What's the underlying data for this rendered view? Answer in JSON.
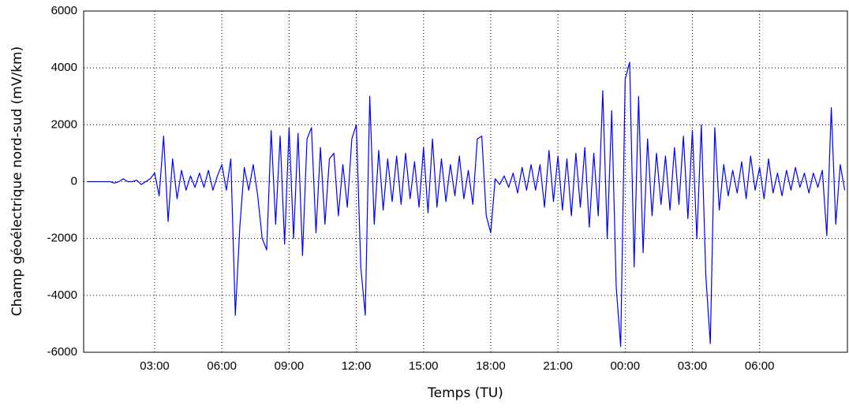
{
  "chart_data": {
    "type": "line",
    "xlabel": "Temps (TU)",
    "ylabel": "Champ géoélectrique nord-sud (mV/km)",
    "xlim": [
      -0.17,
      33.92
    ],
    "xticks": [
      {
        "value": 3,
        "label": "03:00"
      },
      {
        "value": 6,
        "label": "06:00"
      },
      {
        "value": 9,
        "label": "09:00"
      },
      {
        "value": 12,
        "label": "12:00"
      },
      {
        "value": 15,
        "label": "15:00"
      },
      {
        "value": 18,
        "label": "18:00"
      },
      {
        "value": 21,
        "label": "21:00"
      },
      {
        "value": 24,
        "label": "00:00"
      },
      {
        "value": 27,
        "label": "03:00"
      },
      {
        "value": 30,
        "label": "06:00"
      }
    ],
    "ylim": [
      -6000,
      6000
    ],
    "yticks": [
      -6000,
      -4000,
      -2000,
      0,
      2000,
      4000,
      6000
    ],
    "grid": true,
    "x": [
      0,
      0.2,
      0.4,
      0.6,
      0.8,
      1,
      1.2,
      1.4,
      1.6,
      1.8,
      2,
      2.2,
      2.4,
      2.6,
      2.8,
      3,
      3.2,
      3.4,
      3.6,
      3.8,
      4,
      4.2,
      4.4,
      4.6,
      4.8,
      5,
      5.2,
      5.4,
      5.6,
      5.8,
      6,
      6.2,
      6.4,
      6.6,
      6.8,
      7,
      7.2,
      7.4,
      7.6,
      7.8,
      8,
      8.2,
      8.4,
      8.6,
      8.8,
      9,
      9.2,
      9.4,
      9.6,
      9.8,
      10,
      10.2,
      10.4,
      10.6,
      10.8,
      11,
      11.2,
      11.4,
      11.6,
      11.8,
      12,
      12.2,
      12.4,
      12.6,
      12.8,
      13,
      13.2,
      13.4,
      13.6,
      13.8,
      14,
      14.2,
      14.4,
      14.6,
      14.8,
      15,
      15.2,
      15.4,
      15.6,
      15.8,
      16,
      16.2,
      16.4,
      16.6,
      16.8,
      17,
      17.2,
      17.4,
      17.6,
      17.8,
      18,
      18.2,
      18.4,
      18.6,
      18.8,
      19,
      19.2,
      19.4,
      19.6,
      19.8,
      20,
      20.2,
      20.4,
      20.6,
      20.8,
      21,
      21.2,
      21.4,
      21.6,
      21.8,
      22,
      22.2,
      22.4,
      22.6,
      22.8,
      23,
      23.2,
      23.4,
      23.6,
      23.8,
      24,
      24.2,
      24.4,
      24.6,
      24.8,
      25,
      25.2,
      25.4,
      25.6,
      25.8,
      26,
      26.2,
      26.4,
      26.6,
      26.8,
      27,
      27.2,
      27.4,
      27.6,
      27.8,
      28,
      28.2,
      28.4,
      28.6,
      28.8,
      29,
      29.2,
      29.4,
      29.6,
      29.8,
      30,
      30.2,
      30.4,
      30.6,
      30.8,
      31,
      31.2,
      31.4,
      31.6,
      31.8,
      32,
      32.2,
      32.4,
      32.6,
      32.8,
      33,
      33.2,
      33.4,
      33.6,
      33.8
    ],
    "series": [
      {
        "color": "#0000ff",
        "values": [
          0,
          0,
          0,
          0,
          0,
          0,
          -50,
          0,
          100,
          0,
          0,
          50,
          -100,
          0,
          100,
          300,
          -500,
          1600,
          -1400,
          800,
          -600,
          400,
          -300,
          200,
          -200,
          300,
          -200,
          400,
          -300,
          200,
          600,
          -300,
          800,
          -4700,
          -1600,
          500,
          -300,
          600,
          -500,
          -2000,
          -2400,
          1800,
          -1500,
          1600,
          -2200,
          1900,
          -2000,
          1700,
          -2600,
          1500,
          1900,
          -1800,
          1200,
          -1500,
          800,
          1000,
          -1200,
          600,
          -900,
          1500,
          2000,
          -3000,
          -4700,
          3000,
          -1500,
          1100,
          -1000,
          800,
          -700,
          900,
          -800,
          1000,
          -600,
          700,
          -900,
          1200,
          -1100,
          1500,
          -900,
          800,
          -700,
          600,
          -500,
          900,
          -600,
          400,
          -800,
          1500,
          1600,
          -1200,
          -1800,
          100,
          -100,
          200,
          -200,
          300,
          -400,
          500,
          -300,
          600,
          -300,
          600,
          -900,
          1100,
          -700,
          900,
          -1000,
          800,
          -1200,
          1000,
          -900,
          1200,
          -1600,
          1000,
          -1200,
          3200,
          -2000,
          2500,
          -3700,
          -5800,
          3600,
          4200,
          -3000,
          3000,
          -2500,
          1500,
          -1200,
          1000,
          -800,
          900,
          -1000,
          1200,
          -800,
          1600,
          -1300,
          1800,
          -2000,
          2000,
          -3300,
          -5700,
          1900,
          -1000,
          600,
          -500,
          400,
          -400,
          700,
          -600,
          900,
          -300,
          500,
          -600,
          800,
          -400,
          300,
          -500,
          400,
          -300,
          500,
          -200,
          300,
          -400,
          300,
          -200,
          400,
          -1900,
          2600,
          -1500,
          600,
          -300
        ]
      }
    ]
  }
}
